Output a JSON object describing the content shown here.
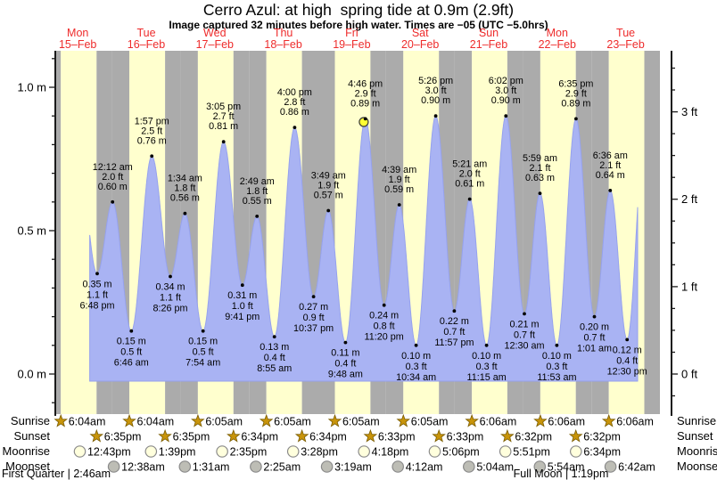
{
  "title": "Cerro Azul: at high  spring tide at 0.9m (2.9ft)",
  "subtitle": "Image captured 32 minutes before high water. Times are −05 (UTC −5.0hrs)",
  "colors": {
    "day_band": "#ffffce",
    "night_band": "#ababab",
    "tide_fill": "#a9b3f3",
    "tide_edge": "#96a2ee",
    "date_text": "#ee2c2c",
    "axis": "#1a1a1a",
    "star_fill": "#c8940a",
    "star_edge": "#7a5c00",
    "moonrise_fill": "#ffffdd",
    "moonset_fill": "#bdbdb5",
    "circle_edge": "#8a8a8a",
    "marker_fill": "#ffff33",
    "marker_edge": "#3a3a3a"
  },
  "chart_data": {
    "type": "area",
    "title": "Cerro Azul: at high  spring tide at 0.9m (2.9ft)",
    "subtitle": "Image captured 32 minutes before high water. Times are −05 (UTC −5.0hrs)",
    "y_axis_left": {
      "unit": "m",
      "tick_labels": [
        "0.0 m",
        "0.5 m",
        "1.0 m"
      ],
      "tick_values": [
        0.0,
        0.5,
        1.0
      ],
      "minor_step": 0.1
    },
    "y_axis_right": {
      "unit": "ft",
      "tick_labels": [
        "0 ft",
        "1 ft",
        "2 ft",
        "3 ft"
      ],
      "tick_values": [
        0,
        1,
        2,
        3
      ],
      "minor_step": 0.25
    },
    "ylim_m": [
      -0.14,
      1.13
    ],
    "days": [
      {
        "weekday": "Mon",
        "date": "15–Feb"
      },
      {
        "weekday": "Tue",
        "date": "16–Feb"
      },
      {
        "weekday": "Wed",
        "date": "17–Feb"
      },
      {
        "weekday": "Thu",
        "date": "18–Feb"
      },
      {
        "weekday": "Fri",
        "date": "19–Feb"
      },
      {
        "weekday": "Sat",
        "date": "20–Feb"
      },
      {
        "weekday": "Sun",
        "date": "21–Feb"
      },
      {
        "weekday": "Mon",
        "date": "22–Feb"
      },
      {
        "weekday": "Tue",
        "date": "23–Feb"
      }
    ],
    "tide_events": [
      {
        "day": 0,
        "time": "6:48 pm",
        "height_m": "0.35",
        "height_ft": "1.1",
        "type": "low"
      },
      {
        "day": 1,
        "time": "12:12 am",
        "height_m": "0.60",
        "height_ft": "2.0",
        "type": "high"
      },
      {
        "day": 1,
        "time": "6:46 am",
        "height_m": "0.15",
        "height_ft": "0.5",
        "type": "low"
      },
      {
        "day": 1,
        "time": "1:57 pm",
        "height_m": "0.76",
        "height_ft": "2.5",
        "type": "high"
      },
      {
        "day": 1,
        "time": "8:26 pm",
        "height_m": "0.34",
        "height_ft": "1.1",
        "type": "low"
      },
      {
        "day": 2,
        "time": "1:34 am",
        "height_m": "0.56",
        "height_ft": "1.8",
        "type": "high"
      },
      {
        "day": 2,
        "time": "7:54 am",
        "height_m": "0.15",
        "height_ft": "0.5",
        "type": "low"
      },
      {
        "day": 2,
        "time": "3:05 pm",
        "height_m": "0.81",
        "height_ft": "2.7",
        "type": "high"
      },
      {
        "day": 2,
        "time": "9:41 pm",
        "height_m": "0.31",
        "height_ft": "1.0",
        "type": "low"
      },
      {
        "day": 3,
        "time": "2:49 am",
        "height_m": "0.55",
        "height_ft": "1.8",
        "type": "high"
      },
      {
        "day": 3,
        "time": "8:55 am",
        "height_m": "0.13",
        "height_ft": "0.4",
        "type": "low"
      },
      {
        "day": 3,
        "time": "4:00 pm",
        "height_m": "0.86",
        "height_ft": "2.8",
        "type": "high"
      },
      {
        "day": 3,
        "time": "10:37 pm",
        "height_m": "0.27",
        "height_ft": "0.9",
        "type": "low"
      },
      {
        "day": 4,
        "time": "3:49 am",
        "height_m": "0.57",
        "height_ft": "1.9",
        "type": "high"
      },
      {
        "day": 4,
        "time": "9:48 am",
        "height_m": "0.11",
        "height_ft": "0.4",
        "type": "low"
      },
      {
        "day": 4,
        "time": "4:46 pm",
        "height_m": "0.89",
        "height_ft": "2.9",
        "type": "high",
        "current": true
      },
      {
        "day": 4,
        "time": "11:20 pm",
        "height_m": "0.24",
        "height_ft": "0.8",
        "type": "low"
      },
      {
        "day": 5,
        "time": "4:39 am",
        "height_m": "0.59",
        "height_ft": "1.9",
        "type": "high"
      },
      {
        "day": 5,
        "time": "10:34 am",
        "height_m": "0.10",
        "height_ft": "0.3",
        "type": "low"
      },
      {
        "day": 5,
        "time": "5:26 pm",
        "height_m": "0.90",
        "height_ft": "3.0",
        "type": "high"
      },
      {
        "day": 5,
        "time": "11:57 pm",
        "height_m": "0.22",
        "height_ft": "0.7",
        "type": "low"
      },
      {
        "day": 6,
        "time": "5:21 am",
        "height_m": "0.61",
        "height_ft": "2.0",
        "type": "high"
      },
      {
        "day": 6,
        "time": "11:15 am",
        "height_m": "0.10",
        "height_ft": "0.3",
        "type": "low"
      },
      {
        "day": 6,
        "time": "6:02 pm",
        "height_m": "0.90",
        "height_ft": "3.0",
        "type": "high"
      },
      {
        "day": 7,
        "time": "12:30 am",
        "height_m": "0.21",
        "height_ft": "0.7",
        "type": "low"
      },
      {
        "day": 7,
        "time": "5:59 am",
        "height_m": "0.63",
        "height_ft": "2.1",
        "type": "high"
      },
      {
        "day": 7,
        "time": "11:53 am",
        "height_m": "0.10",
        "height_ft": "0.3",
        "type": "low"
      },
      {
        "day": 7,
        "time": "6:35 pm",
        "height_m": "0.89",
        "height_ft": "2.9",
        "type": "high"
      },
      {
        "day": 8,
        "time": "1:01 am",
        "height_m": "0.20",
        "height_ft": "0.7",
        "type": "low"
      },
      {
        "day": 8,
        "time": "6:36 am",
        "height_m": "0.64",
        "height_ft": "2.1",
        "type": "high"
      },
      {
        "day": 8,
        "time": "12:30 pm",
        "height_m": "0.12",
        "height_ft": "0.4",
        "type": "low"
      }
    ],
    "current_marker": {
      "day": 4,
      "time": "4:14 pm",
      "note": "32 minutes before high water"
    },
    "curve_window": {
      "start": {
        "day": 0,
        "time": "4:12 pm"
      },
      "end": {
        "day": 8,
        "time": "4:12 pm"
      },
      "edge_anchor_before": {
        "day": 0,
        "time": "12:30 pm",
        "height_m": 0.72
      },
      "edge_anchor_after": {
        "day": 8,
        "time": "7:00 pm",
        "height_m": 0.88
      }
    }
  },
  "astronomy": {
    "rows": [
      {
        "label": "Sunrise",
        "icon": "sun-star",
        "events": [
          {
            "day": 0,
            "time": "6:04am"
          },
          {
            "day": 1,
            "time": "6:04am"
          },
          {
            "day": 2,
            "time": "6:05am"
          },
          {
            "day": 3,
            "time": "6:05am"
          },
          {
            "day": 4,
            "time": "6:05am"
          },
          {
            "day": 5,
            "time": "6:05am"
          },
          {
            "day": 6,
            "time": "6:06am"
          },
          {
            "day": 7,
            "time": "6:06am"
          },
          {
            "day": 8,
            "time": "6:06am"
          }
        ]
      },
      {
        "label": "Sunset",
        "icon": "sun-star",
        "events": [
          {
            "day": 0,
            "time": "6:35pm"
          },
          {
            "day": 1,
            "time": "6:35pm"
          },
          {
            "day": 2,
            "time": "6:34pm"
          },
          {
            "day": 3,
            "time": "6:34pm"
          },
          {
            "day": 4,
            "time": "6:33pm"
          },
          {
            "day": 5,
            "time": "6:33pm"
          },
          {
            "day": 6,
            "time": "6:32pm"
          },
          {
            "day": 7,
            "time": "6:32pm"
          }
        ]
      },
      {
        "label": "Moonrise",
        "icon": "moon-circle-light",
        "events": [
          {
            "day": 0,
            "time": "12:43pm"
          },
          {
            "day": 1,
            "time": "1:39pm"
          },
          {
            "day": 2,
            "time": "2:35pm"
          },
          {
            "day": 3,
            "time": "3:28pm"
          },
          {
            "day": 4,
            "time": "4:18pm"
          },
          {
            "day": 5,
            "time": "5:06pm"
          },
          {
            "day": 6,
            "time": "5:51pm"
          },
          {
            "day": 7,
            "time": "6:34pm"
          }
        ]
      },
      {
        "label": "Moonset",
        "icon": "moon-circle-dark",
        "events": [
          {
            "day": 1,
            "time": "12:38am"
          },
          {
            "day": 2,
            "time": "1:31am"
          },
          {
            "day": 3,
            "time": "2:25am"
          },
          {
            "day": 4,
            "time": "3:19am"
          },
          {
            "day": 5,
            "time": "4:12am"
          },
          {
            "day": 6,
            "time": "5:04am"
          },
          {
            "day": 7,
            "time": "5:54am"
          },
          {
            "day": 8,
            "time": "6:42am"
          }
        ]
      }
    ],
    "phases": [
      {
        "label": "First Quarter",
        "time": "2:46am",
        "display": "First Quarter | 2:46am",
        "day": 0
      },
      {
        "label": "Full Moon",
        "time": "1:19pm",
        "display": "Full Moon | 1:19pm",
        "day": 7
      }
    ]
  }
}
